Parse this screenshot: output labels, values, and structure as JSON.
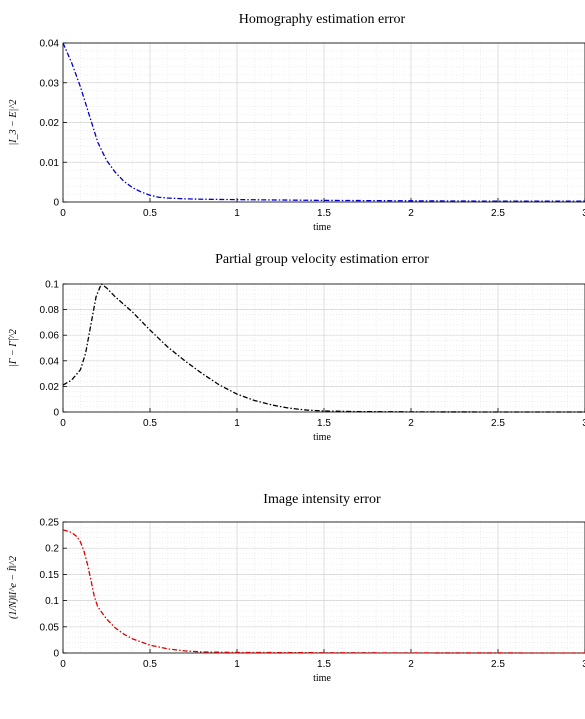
{
  "chart_data": [
    {
      "type": "line",
      "title": "Homography estimation error",
      "xlabel": "time",
      "ylabel": "|I_3 − E|^2",
      "xlim": [
        0,
        3
      ],
      "ylim": [
        0,
        0.04
      ],
      "xticks": [
        0,
        0.5,
        1,
        1.5,
        2,
        2.5,
        3
      ],
      "xtick_labels": [
        "0",
        "0.5",
        "1",
        "1.5",
        "2",
        "2.5",
        "3"
      ],
      "yticks": [
        0,
        0.01,
        0.02,
        0.03,
        0.04
      ],
      "ytick_labels": [
        "0",
        "0.01",
        "0.02",
        "0.03",
        "0.04"
      ],
      "grid": true,
      "color": "#0000cc",
      "series": [
        {
          "line_style": "dash-dot",
          "x": [
            0,
            0.05,
            0.1,
            0.15,
            0.2,
            0.25,
            0.3,
            0.35,
            0.4,
            0.45,
            0.5,
            0.55,
            0.6,
            0.65,
            0.7,
            0.8,
            1.0,
            1.5,
            2.0,
            2.5,
            3.0
          ],
          "y": [
            0.04,
            0.035,
            0.029,
            0.022,
            0.015,
            0.0105,
            0.0075,
            0.0052,
            0.0036,
            0.0025,
            0.0017,
            0.0012,
            0.001,
            0.0009,
            0.0008,
            0.0007,
            0.0006,
            0.0004,
            0.0003,
            0.0002,
            0.0002
          ]
        }
      ]
    },
    {
      "type": "line",
      "title": "Partial group velocity estimation error",
      "xlabel": "time",
      "ylabel": "|Γ − Γ̂|^2",
      "xlim": [
        0,
        3
      ],
      "ylim": [
        0,
        0.1
      ],
      "xticks": [
        0,
        0.5,
        1,
        1.5,
        2,
        2.5,
        3
      ],
      "xtick_labels": [
        "0",
        "0.5",
        "1",
        "1.5",
        "2",
        "2.5",
        "3"
      ],
      "yticks": [
        0,
        0.02,
        0.04,
        0.06,
        0.08,
        0.1
      ],
      "ytick_labels": [
        "0",
        "0.02",
        "0.04",
        "0.06",
        "0.08",
        "0.1"
      ],
      "grid": true,
      "color": "#000000",
      "series": [
        {
          "line_style": "dash-dot",
          "x": [
            0,
            0.05,
            0.1,
            0.13,
            0.16,
            0.19,
            0.22,
            0.25,
            0.3,
            0.35,
            0.4,
            0.5,
            0.6,
            0.7,
            0.8,
            0.9,
            1.0,
            1.1,
            1.2,
            1.3,
            1.4,
            1.5,
            1.7,
            2.0,
            2.5,
            3.0
          ],
          "y": [
            0.021,
            0.025,
            0.033,
            0.046,
            0.068,
            0.09,
            0.1,
            0.097,
            0.09,
            0.084,
            0.078,
            0.064,
            0.051,
            0.04,
            0.03,
            0.021,
            0.014,
            0.009,
            0.0055,
            0.003,
            0.0015,
            0.0008,
            0.0003,
            0.0001,
            0.0,
            0.0
          ]
        }
      ]
    },
    {
      "type": "line",
      "title": "Image intensity error",
      "xlabel": "time",
      "ylabel": "(1/N)‖I^e − Î‖^2",
      "xlim": [
        0,
        3
      ],
      "ylim": [
        0,
        0.25
      ],
      "xticks": [
        0,
        0.5,
        1,
        1.5,
        2,
        2.5,
        3
      ],
      "xtick_labels": [
        "0",
        "0.5",
        "1",
        "1.5",
        "2",
        "2.5",
        "3"
      ],
      "yticks": [
        0,
        0.05,
        0.1,
        0.15,
        0.2,
        0.25
      ],
      "ytick_labels": [
        "0",
        "0.05",
        "0.1",
        "0.15",
        "0.2",
        "0.25"
      ],
      "grid": true,
      "color": "#dd0000",
      "series": [
        {
          "line_style": "dash-dot",
          "x": [
            0,
            0.05,
            0.08,
            0.1,
            0.12,
            0.14,
            0.16,
            0.18,
            0.2,
            0.25,
            0.3,
            0.35,
            0.4,
            0.5,
            0.6,
            0.7,
            0.8,
            1.0,
            1.5,
            2.0,
            3.0
          ],
          "y": [
            0.235,
            0.23,
            0.222,
            0.212,
            0.195,
            0.17,
            0.14,
            0.108,
            0.088,
            0.065,
            0.048,
            0.036,
            0.027,
            0.015,
            0.008,
            0.004,
            0.002,
            0.001,
            0.0005,
            0.0002,
            0.0
          ]
        }
      ]
    }
  ]
}
